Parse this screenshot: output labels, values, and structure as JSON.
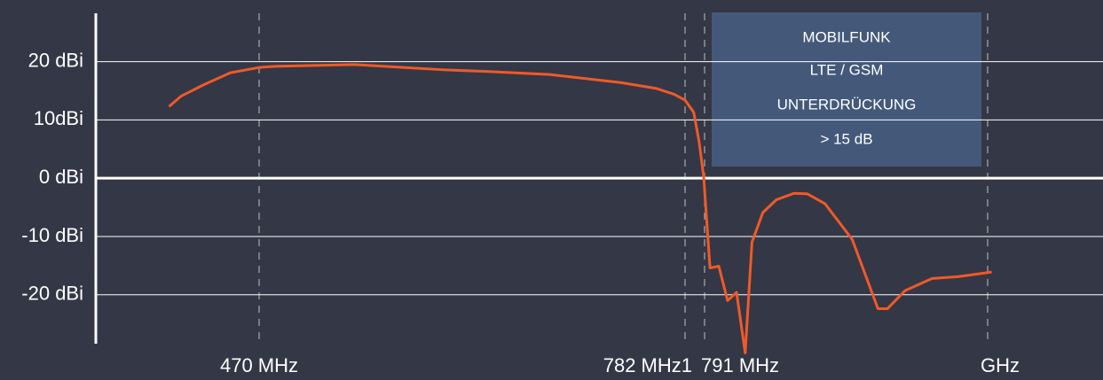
{
  "chart_data": {
    "type": "line",
    "annotation": [
      "MOBILFUNK",
      "LTE / GSM",
      "UNTERDRÜCKUNG",
      "> 15 dB"
    ],
    "x": [
      404,
      413,
      430,
      449,
      470,
      482,
      540,
      605,
      638,
      683,
      735,
      761,
      774,
      782,
      786,
      788.5,
      790.6,
      795,
      801.5,
      808,
      814.6,
      821,
      826,
      834,
      844,
      857,
      867,
      880,
      900,
      919,
      926,
      939,
      959,
      978,
      1003
    ],
    "series": [
      {
        "color": "#f05a28",
        "values": [
          12.3,
          14.1,
          16.1,
          18.1,
          19.0,
          19.2,
          19.5,
          18.6,
          18.3,
          17.8,
          16.4,
          15.4,
          14.4,
          13.4,
          11.3,
          6.2,
          0.2,
          -15.4,
          -15.1,
          -21,
          -19.6,
          -30,
          -11,
          -5.9,
          -3.7,
          -2.6,
          -2.7,
          -4.4,
          -10.5,
          -22.4,
          -22.4,
          -19.3,
          -17.2,
          -16.9,
          -16.1
        ]
      }
    ],
    "ylim": [
      -28.4,
      28.3
    ],
    "yticks": [
      {
        "value": 20,
        "label": "20 dBi"
      },
      {
        "value": 10,
        "label": "10dBi"
      },
      {
        "value": 0,
        "label": "0 dBi"
      },
      {
        "value": -10,
        "label": "-10 dBi"
      },
      {
        "value": -20,
        "label": "-20 dBi"
      }
    ],
    "xticks": [
      {
        "value": 470,
        "label": "470 MHz"
      },
      {
        "value": 782,
        "label": "782 MHz1"
      },
      {
        "value": 791,
        "label": "791 MHz"
      },
      {
        "value": 1000,
        "label": "GHz"
      }
    ],
    "grid": true
  }
}
